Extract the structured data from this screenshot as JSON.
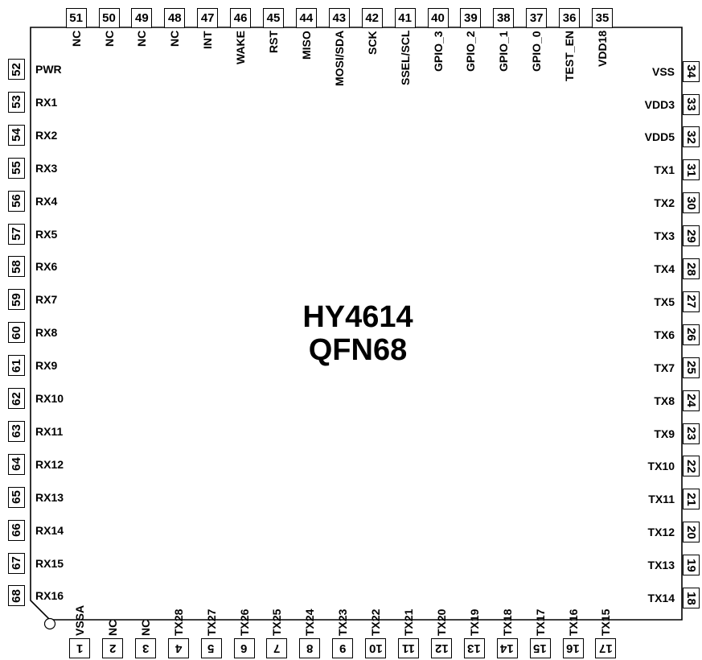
{
  "chip": {
    "line1": "HY4614",
    "line2": "QFN68"
  },
  "pins": {
    "bottom": [
      {
        "n": "1",
        "name": "VSSA"
      },
      {
        "n": "2",
        "name": "NC"
      },
      {
        "n": "3",
        "name": "NC"
      },
      {
        "n": "4",
        "name": "TX28"
      },
      {
        "n": "5",
        "name": "TX27"
      },
      {
        "n": "6",
        "name": "TX26"
      },
      {
        "n": "7",
        "name": "TX25"
      },
      {
        "n": "8",
        "name": "TX24"
      },
      {
        "n": "9",
        "name": "TX23"
      },
      {
        "n": "10",
        "name": "TX22"
      },
      {
        "n": "11",
        "name": "TX21"
      },
      {
        "n": "12",
        "name": "TX20"
      },
      {
        "n": "13",
        "name": "TX19"
      },
      {
        "n": "14",
        "name": "TX18"
      },
      {
        "n": "15",
        "name": "TX17"
      },
      {
        "n": "16",
        "name": "TX16"
      },
      {
        "n": "17",
        "name": "TX15"
      }
    ],
    "right": [
      {
        "n": "18",
        "name": "TX14"
      },
      {
        "n": "19",
        "name": "TX13"
      },
      {
        "n": "20",
        "name": "TX12"
      },
      {
        "n": "21",
        "name": "TX11"
      },
      {
        "n": "22",
        "name": "TX10"
      },
      {
        "n": "23",
        "name": "TX9"
      },
      {
        "n": "24",
        "name": "TX8"
      },
      {
        "n": "25",
        "name": "TX7"
      },
      {
        "n": "26",
        "name": "TX6"
      },
      {
        "n": "27",
        "name": "TX5"
      },
      {
        "n": "28",
        "name": "TX4"
      },
      {
        "n": "29",
        "name": "TX3"
      },
      {
        "n": "30",
        "name": "TX2"
      },
      {
        "n": "31",
        "name": "TX1"
      },
      {
        "n": "32",
        "name": "VDD5"
      },
      {
        "n": "33",
        "name": "VDD3"
      },
      {
        "n": "34",
        "name": "VSS"
      }
    ],
    "top": [
      {
        "n": "35",
        "name": "VDD18"
      },
      {
        "n": "36",
        "name": "TEST_EN"
      },
      {
        "n": "37",
        "name": "GPIO_0"
      },
      {
        "n": "38",
        "name": "GPIO_1"
      },
      {
        "n": "39",
        "name": "GPIO_2"
      },
      {
        "n": "40",
        "name": "GPIO_3"
      },
      {
        "n": "41",
        "name": "SSEL/SCL"
      },
      {
        "n": "42",
        "name": "SCK"
      },
      {
        "n": "43",
        "name": "MOSI/SDA"
      },
      {
        "n": "44",
        "name": "MISO"
      },
      {
        "n": "45",
        "name": "RST"
      },
      {
        "n": "46",
        "name": "WAKE"
      },
      {
        "n": "47",
        "name": "INT"
      },
      {
        "n": "48",
        "name": "NC"
      },
      {
        "n": "49",
        "name": "NC"
      },
      {
        "n": "50",
        "name": "NC"
      },
      {
        "n": "51",
        "name": "NC"
      }
    ],
    "left": [
      {
        "n": "52",
        "name": "PWR"
      },
      {
        "n": "53",
        "name": "RX1"
      },
      {
        "n": "54",
        "name": "RX2"
      },
      {
        "n": "55",
        "name": "RX3"
      },
      {
        "n": "56",
        "name": "RX4"
      },
      {
        "n": "57",
        "name": "RX5"
      },
      {
        "n": "58",
        "name": "RX6"
      },
      {
        "n": "59",
        "name": "RX7"
      },
      {
        "n": "60",
        "name": "RX8"
      },
      {
        "n": "61",
        "name": "RX9"
      },
      {
        "n": "62",
        "name": "RX10"
      },
      {
        "n": "63",
        "name": "RX11"
      },
      {
        "n": "64",
        "name": "RX12"
      },
      {
        "n": "65",
        "name": "RX13"
      },
      {
        "n": "66",
        "name": "RX14"
      },
      {
        "n": "67",
        "name": "RX15"
      },
      {
        "n": "68",
        "name": "RX16"
      }
    ]
  }
}
